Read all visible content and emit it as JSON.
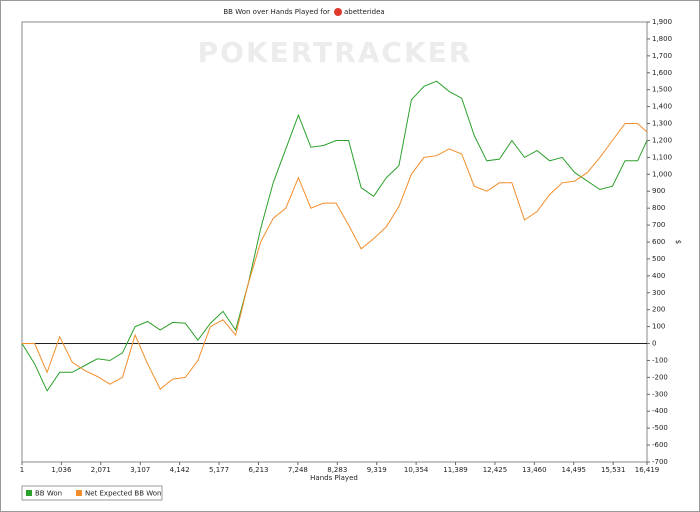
{
  "chart_data": {
    "type": "line",
    "title": "BB Won over Hands Played for",
    "player": "abetteridea",
    "watermark": "POKERTRACKER",
    "xlabel": "Hands Played",
    "ylabel": "$",
    "x": [
      1,
      331,
      661,
      991,
      1321,
      1651,
      1981,
      2311,
      2641,
      2971,
      3301,
      3631,
      3961,
      4291,
      4621,
      4951,
      5281,
      5611,
      5941,
      6271,
      6601,
      6931,
      7261,
      7591,
      7921,
      8251,
      8581,
      8911,
      9241,
      9571,
      9901,
      10231,
      10561,
      10891,
      11221,
      11551,
      11881,
      12211,
      12541,
      12871,
      13201,
      13531,
      13861,
      14191,
      14521,
      14851,
      15181,
      15511,
      15841,
      16171,
      16419
    ],
    "series": [
      {
        "name": "BB Won",
        "color": "#2ca02c",
        "values": [
          0,
          -120,
          -280,
          -170,
          -170,
          -130,
          -90,
          -100,
          -55,
          100,
          130,
          80,
          125,
          120,
          20,
          120,
          190,
          80,
          350,
          680,
          950,
          1150,
          1350,
          1160,
          1170,
          1200,
          1200,
          920,
          870,
          980,
          1050,
          1440,
          1520,
          1550,
          1490,
          1450,
          1230,
          1080,
          1090,
          1200,
          1100,
          1140,
          1080,
          1100,
          1010,
          960,
          910,
          930,
          1080,
          1080,
          1200
        ]
      },
      {
        "name": "Net Expected BB Won",
        "color": "#f28e2b",
        "values": [
          0,
          0,
          -170,
          40,
          -110,
          -160,
          -195,
          -240,
          -200,
          50,
          -120,
          -270,
          -210,
          -200,
          -100,
          100,
          140,
          50,
          350,
          600,
          740,
          800,
          980,
          800,
          830,
          830,
          700,
          560,
          620,
          690,
          810,
          1000,
          1100,
          1110,
          1150,
          1120,
          930,
          900,
          950,
          950,
          730,
          780,
          880,
          950,
          960,
          1010,
          1100,
          1200,
          1300,
          1300,
          1250
        ]
      }
    ],
    "xlim": [
      1,
      16419
    ],
    "xticks": [
      1,
      {
        "value": 1036,
        "label": "1,036"
      },
      {
        "value": 2071,
        "label": "2,071"
      },
      {
        "value": 3107,
        "label": "3,107"
      },
      {
        "value": 4142,
        "label": "4,142"
      },
      {
        "value": 5177,
        "label": "5,177"
      },
      {
        "value": 6213,
        "label": "6,213"
      },
      {
        "value": 7248,
        "label": "7,248"
      },
      {
        "value": 8283,
        "label": "8,283"
      },
      {
        "value": 9319,
        "label": "9,319"
      },
      {
        "value": 10354,
        "label": "10,354"
      },
      {
        "value": 11389,
        "label": "11,389"
      },
      {
        "value": 12425,
        "label": "12,425"
      },
      {
        "value": 13460,
        "label": "13,460"
      },
      {
        "value": 14495,
        "label": "14,495"
      },
      {
        "value": 15531,
        "label": "15,531"
      },
      {
        "value": 16419,
        "label": "16,419"
      }
    ],
    "ylim": [
      -700,
      1900
    ],
    "yticks": [
      -700,
      -600,
      -500,
      -400,
      -300,
      -200,
      -100,
      0,
      100,
      200,
      300,
      400,
      500,
      600,
      700,
      800,
      900,
      {
        "value": 1000,
        "label": "1,000"
      },
      {
        "value": 1100,
        "label": "1,100"
      },
      {
        "value": 1200,
        "label": "1,200"
      },
      {
        "value": 1300,
        "label": "1,300"
      },
      {
        "value": 1400,
        "label": "1,400"
      },
      {
        "value": 1500,
        "label": "1,500"
      },
      {
        "value": 1600,
        "label": "1,600"
      },
      {
        "value": 1700,
        "label": "1,700"
      },
      {
        "value": 1800,
        "label": "1,800"
      },
      {
        "value": 1900,
        "label": "1,900"
      }
    ],
    "grid": false,
    "legend": "bottom-left"
  }
}
